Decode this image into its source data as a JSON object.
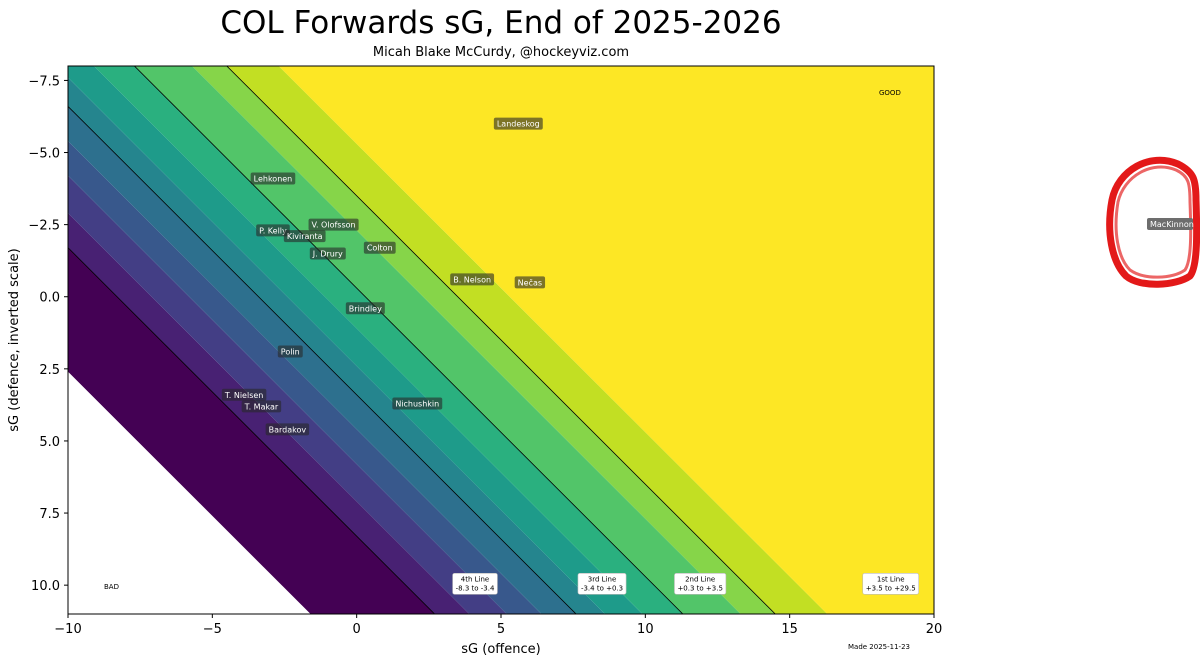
{
  "chart_data": {
    "type": "scatter",
    "title": "COL Forwards sG, End of 2025-2026",
    "subtitle": "Micah Blake McCurdy, @hockeyviz.com",
    "xlabel": "sG (offence)",
    "ylabel": "sG (defence, inverted scale)",
    "xlim": [
      -10,
      20
    ],
    "ylim": [
      11,
      -8
    ],
    "x_ticks": [
      "−10",
      "−5",
      "0",
      "5",
      "10",
      "15",
      "20"
    ],
    "x_tick_values": [
      -10,
      -5,
      0,
      5,
      10,
      15,
      20
    ],
    "y_ticks": [
      "−7.5",
      "−5.0",
      "−2.5",
      "0.0",
      "2.5",
      "5.0",
      "7.5",
      "10.0"
    ],
    "y_tick_values": [
      -7.5,
      -5.0,
      -2.5,
      0.0,
      2.5,
      5.0,
      7.5,
      10.0
    ],
    "band_colors": [
      "#440154",
      "#482173",
      "#433e85",
      "#38588c",
      "#2d708e",
      "#25858e",
      "#1e9b8a",
      "#2ab07f",
      "#52c569",
      "#86d549",
      "#c2df23",
      "#fde725"
    ],
    "band_boundaries": [
      -12.6,
      -8.3,
      -7.1,
      -5.8,
      -4.6,
      -3.4,
      -2.4,
      -1.1,
      0.3,
      2.3,
      3.5,
      5.3,
      29.5
    ],
    "line_thresholds": [
      -8.3,
      -3.4,
      0.3,
      3.5
    ],
    "players": [
      {
        "name": "Landeskog",
        "x": 5.6,
        "y": -6.0
      },
      {
        "name": "Lehkonen",
        "x": -2.9,
        "y": -4.1
      },
      {
        "name": "V. Olofsson",
        "x": -0.8,
        "y": -2.5
      },
      {
        "name": "P. Kelly",
        "x": -2.9,
        "y": -2.3
      },
      {
        "name": "Kiviranta",
        "x": -1.8,
        "y": -2.1
      },
      {
        "name": "Colton",
        "x": 0.8,
        "y": -1.7
      },
      {
        "name": "J. Drury",
        "x": -1.0,
        "y": -1.5
      },
      {
        "name": "B. Nelson",
        "x": 4.0,
        "y": -0.6
      },
      {
        "name": "Nečas",
        "x": 6.0,
        "y": -0.5
      },
      {
        "name": "Brindley",
        "x": 0.3,
        "y": 0.4
      },
      {
        "name": "Polin",
        "x": -2.3,
        "y": 1.9
      },
      {
        "name": "T. Nielsen",
        "x": -3.9,
        "y": 3.4
      },
      {
        "name": "T. Makar",
        "x": -3.3,
        "y": 3.8
      },
      {
        "name": "Nichushkin",
        "x": 2.1,
        "y": 3.7
      },
      {
        "name": "Bardakov",
        "x": -2.4,
        "y": 4.6
      }
    ],
    "line_labels": [
      {
        "title": "4th Line",
        "range": "-8.3 to -3.4",
        "x": 4.1
      },
      {
        "title": "3rd Line",
        "range": "-3.4 to +0.3",
        "x": 8.5
      },
      {
        "title": "2nd Line",
        "range": "+0.3 to +3.5",
        "x": 11.9
      },
      {
        "title": "1st Line",
        "range": "+3.5 to +29.5",
        "x": 18.5
      }
    ],
    "corner_good": "GOOD",
    "corner_bad": "BAD",
    "made": "Made 2025-11-23"
  },
  "offchart_label": "MacKinnon"
}
